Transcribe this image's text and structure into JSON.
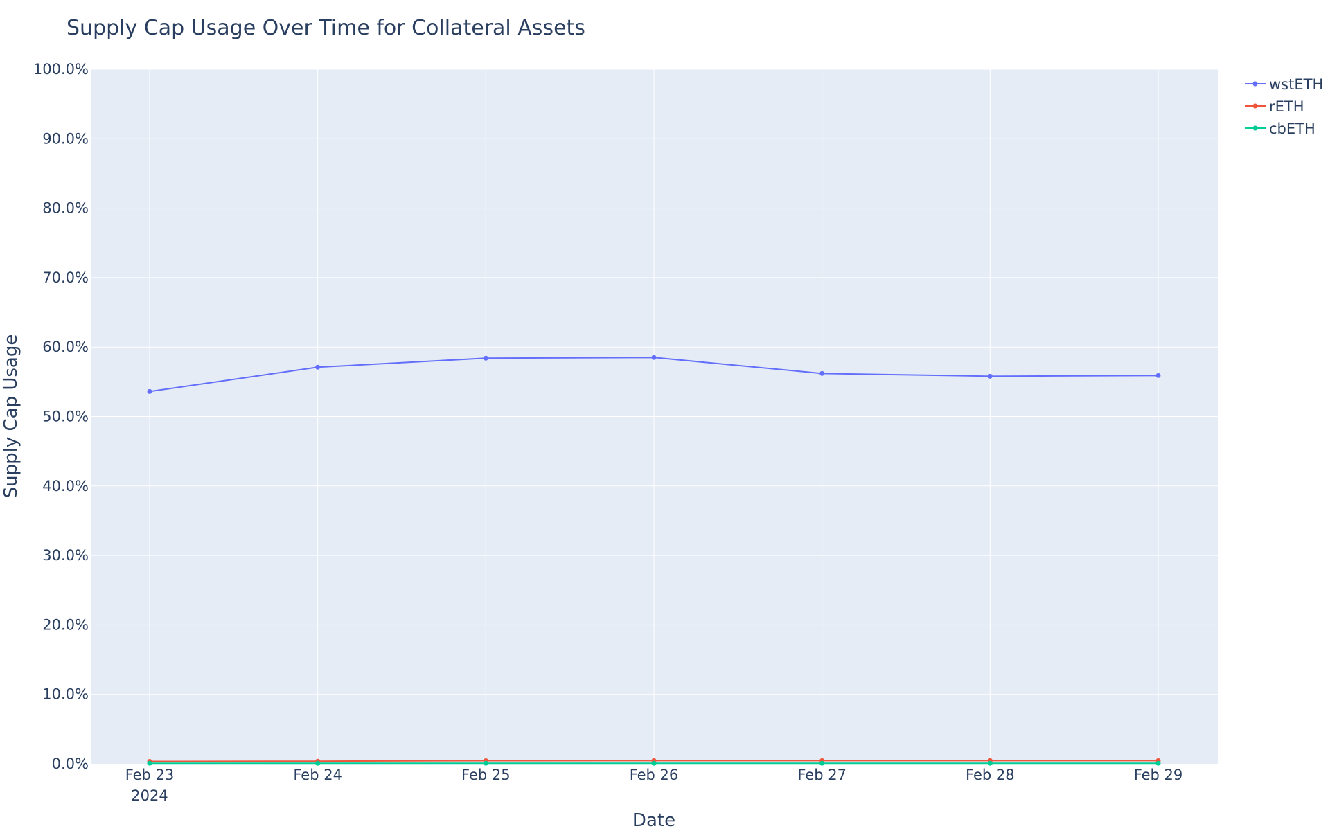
{
  "chart_data": {
    "type": "line",
    "title": "Supply Cap Usage Over Time for Collateral Assets",
    "xlabel": "Date",
    "ylabel": "Supply Cap Usage",
    "x": [
      "Feb 23",
      "Feb 24",
      "Feb 25",
      "Feb 26",
      "Feb 27",
      "Feb 28",
      "Feb 29"
    ],
    "x_year_label": "2024",
    "ylim": [
      0,
      100
    ],
    "yticks": [
      "0.0%",
      "10.0%",
      "20.0%",
      "30.0%",
      "40.0%",
      "50.0%",
      "60.0%",
      "70.0%",
      "80.0%",
      "90.0%",
      "100.0%"
    ],
    "grid": true,
    "legend_position": "top-right",
    "plot_background": "#e5ecf6",
    "series": [
      {
        "name": "wstETH",
        "color": "#636efa",
        "values": [
          53.6,
          57.1,
          58.4,
          58.5,
          56.2,
          55.8,
          55.9
        ]
      },
      {
        "name": "rETH",
        "color": "#ef553b",
        "values": [
          0.35,
          0.38,
          0.45,
          0.46,
          0.46,
          0.46,
          0.46
        ]
      },
      {
        "name": "cbETH",
        "color": "#00cc96",
        "values": [
          0.08,
          0.08,
          0.08,
          0.08,
          0.08,
          0.08,
          0.08
        ]
      }
    ]
  }
}
